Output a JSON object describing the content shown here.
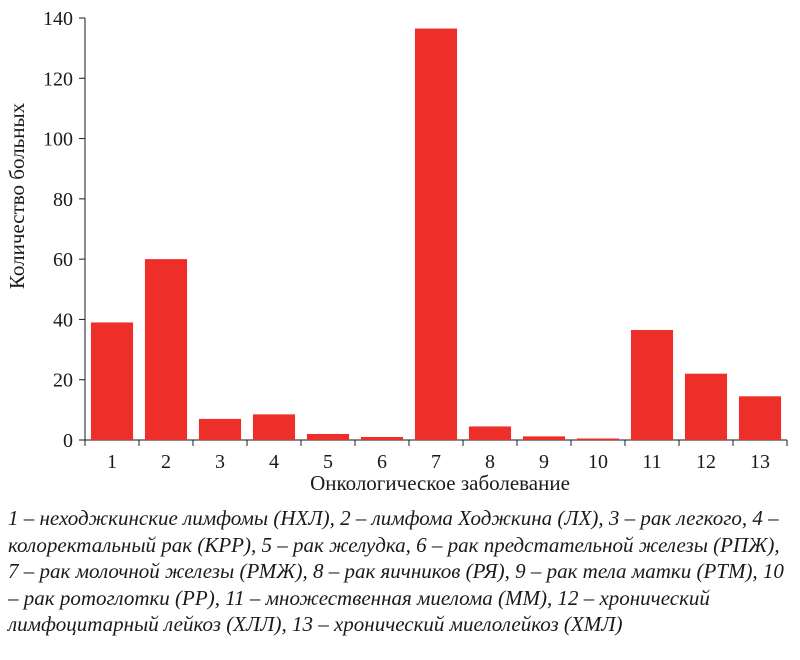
{
  "chart_data": {
    "type": "bar",
    "categories": [
      "1",
      "2",
      "3",
      "4",
      "5",
      "6",
      "7",
      "8",
      "9",
      "10",
      "11",
      "12",
      "13"
    ],
    "values": [
      39,
      60,
      7,
      8.5,
      2,
      1,
      136.5,
      4.5,
      1.2,
      0.5,
      36.5,
      22,
      14.5
    ],
    "xlabel": "Онкологическое заболевание",
    "ylabel": "Количество больных",
    "ylim": [
      0,
      140
    ],
    "yticks": [
      0,
      20,
      40,
      60,
      80,
      100,
      120,
      140
    ],
    "bar_color": "#ee2e28",
    "grid": false,
    "legend": "none"
  },
  "caption": "1 – неходжкинские лимфомы (НХЛ), 2 – лимфома Ходжкина (ЛХ), 3 – рак легкого, 4 – колоректальный рак (КРР), 5 – рак желудка, 6 – рак предстательной железы (РПЖ), 7 – рак молочной железы (РМЖ), 8 – рак яичников (РЯ), 9 – рак тела матки (РТМ), 10 – рак ротоглотки (РР), 11 – множественная миелома (ММ), 12 – хронический лимфоцитарный лейкоз (ХЛЛ), 13 – хронический миелолейкоз (ХМЛ)"
}
